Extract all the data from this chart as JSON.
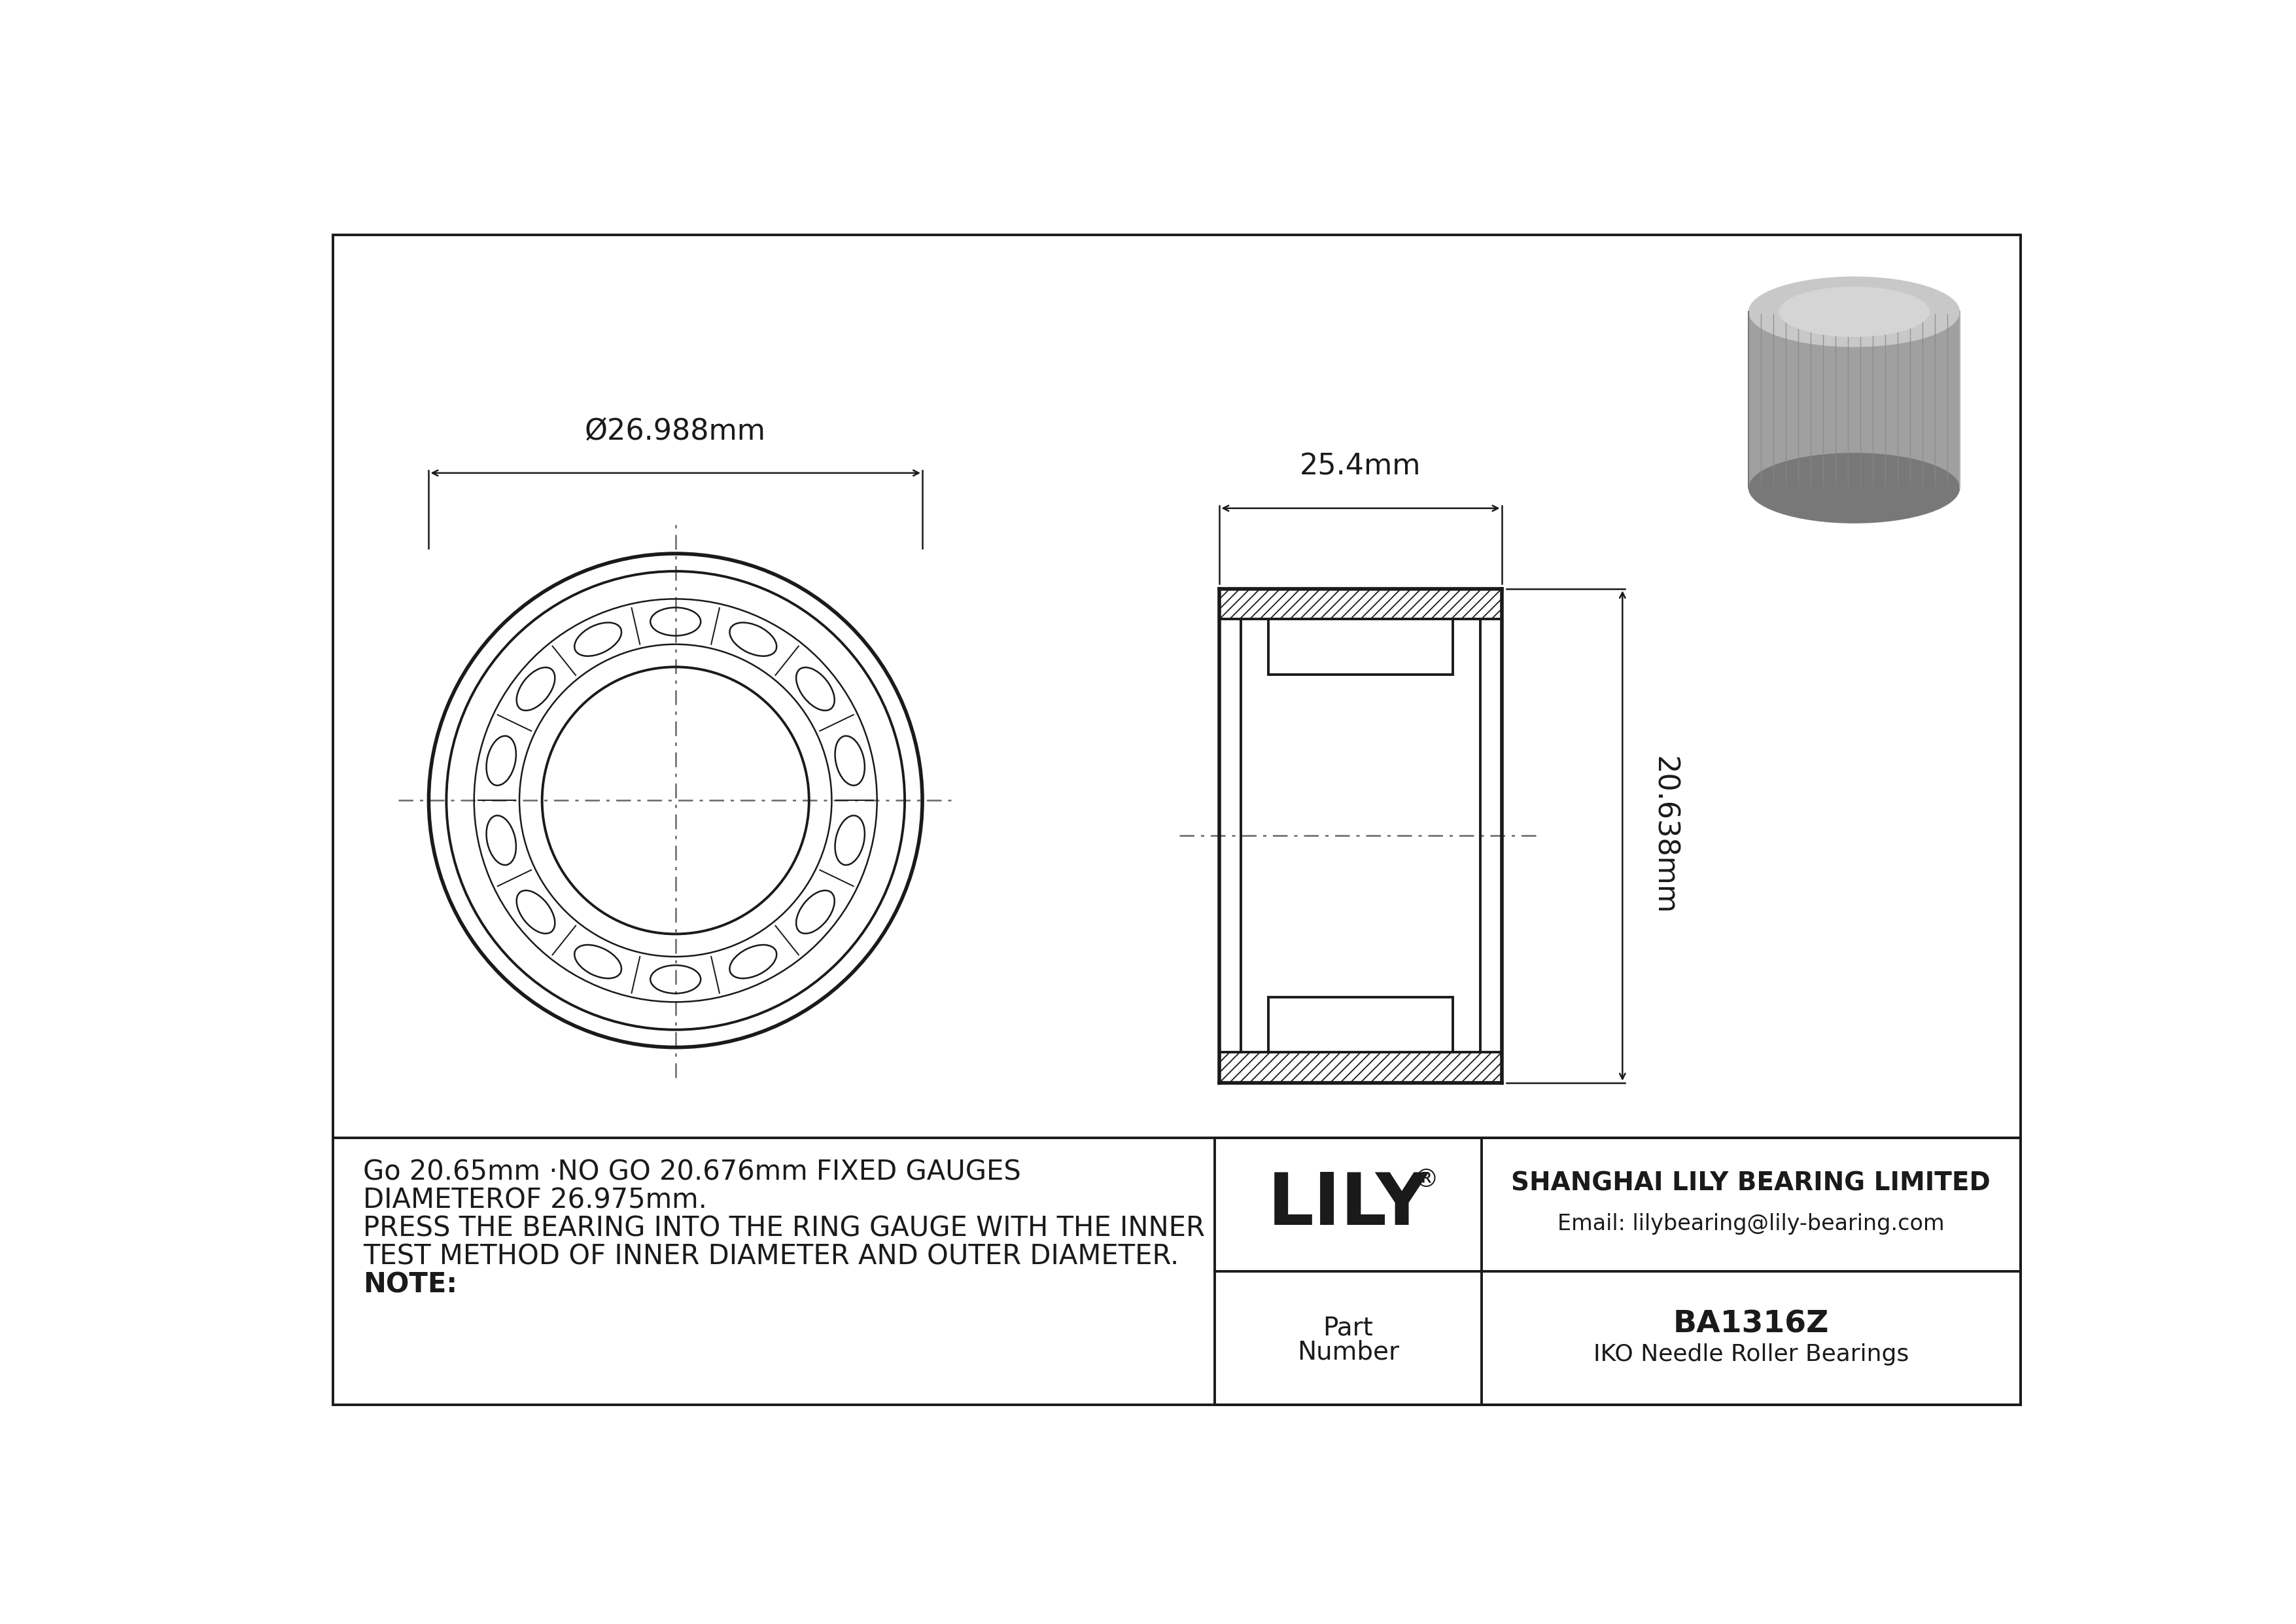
{
  "bg_color": "#ffffff",
  "line_color": "#1a1a1a",
  "outer_diameter_label": "Ø26.988mm",
  "width_label": "25.4mm",
  "height_label": "20.638mm",
  "note_lines": [
    "NOTE:",
    "TEST METHOD OF INNER DIAMETER AND OUTER DIAMETER.",
    "PRESS THE BEARING INTO THE RING GAUGE WITH THE INNER",
    "DIAMETEROF 26.975mm.",
    "Go 20.65mm ·NO GO 20.676mm FIXED GAUGES"
  ],
  "company_name": "SHANGHAI LILY BEARING LIMITED",
  "company_email": "Email: lilybearing@lily-bearing.com",
  "lily_logo": "LILY",
  "lily_registered": "®",
  "part_label_line1": "Part",
  "part_label_line2": "Number",
  "part_number": "BA1316Z",
  "part_type": "IKO Needle Roller Bearings",
  "gray_color": "#a0a0a0",
  "gray_light": "#c8c8c8",
  "gray_dark": "#787878"
}
